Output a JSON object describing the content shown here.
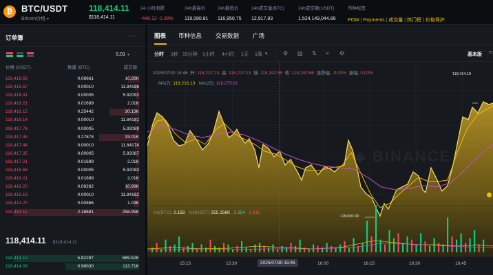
{
  "ticker": {
    "coin_symbol": "₿",
    "pair": "BTC/USDT",
    "coin_name": "Bitcoin价格",
    "last_price": "118,414.11",
    "last_price_usd": "$118,414.11",
    "stats": [
      {
        "label": "24 小时涨跌",
        "value": "-446.12",
        "value2": "-0.38%"
      },
      {
        "label": "24h最高价",
        "value": "119,080.81"
      },
      {
        "label": "24h最低价",
        "value": "116,950.75"
      },
      {
        "label": "24h成交量(BTC)",
        "value": "12,917.83"
      },
      {
        "label": "24h成交额(USDT)",
        "value": "1,524,149,044.89"
      },
      {
        "label": "币种标签",
        "tags": [
          "POW",
          "Payments",
          "成交量",
          "热门榜",
          "价格保护"
        ]
      }
    ]
  },
  "orderbook": {
    "title": "订单簿",
    "menu": "···",
    "step": "0.01",
    "headers": {
      "price": "价格 (USDT)",
      "amount": "数量 (BTC)",
      "total": "成交额"
    },
    "asks": [
      {
        "price": "118,418.58",
        "amount": "0.08661",
        "total": "10.26K",
        "depth": 0.08
      },
      {
        "price": "118,418.57",
        "amount": "0.00010",
        "total": "11.84186",
        "depth": 0.03
      },
      {
        "price": "118,418.41",
        "amount": "0.00005",
        "total": "5.92092",
        "depth": 0.02
      },
      {
        "price": "118,418.21",
        "amount": "0.01699",
        "total": "2.01K",
        "depth": 0.02
      },
      {
        "price": "118,418.15",
        "amount": "0.25442",
        "total": "30.13K",
        "depth": 0.22
      },
      {
        "price": "118,418.14",
        "amount": "0.00010",
        "total": "11.84181",
        "depth": 0.03
      },
      {
        "price": "118,417.76",
        "amount": "0.00005",
        "total": "5.92089",
        "depth": 0.02
      },
      {
        "price": "118,417.45",
        "amount": "0.27878",
        "total": "33.01K",
        "depth": 0.3
      },
      {
        "price": "118,417.44",
        "amount": "0.00010",
        "total": "11.84174",
        "depth": 0.03
      },
      {
        "price": "118,417.35",
        "amount": "0.00005",
        "total": "5.92087",
        "depth": 0.02
      },
      {
        "price": "118,417.21",
        "amount": "0.01699",
        "total": "2.01K",
        "depth": 0.02
      },
      {
        "price": "118,416.68",
        "amount": "0.00005",
        "total": "5.92083",
        "depth": 0.02
      },
      {
        "price": "118,416.21",
        "amount": "0.01699",
        "total": "2.01K",
        "depth": 0.02
      },
      {
        "price": "118,416.20",
        "amount": "0.09282",
        "total": "10.99K",
        "depth": 0.1
      },
      {
        "price": "118,416.19",
        "amount": "0.00010",
        "total": "11.84162",
        "depth": 0.03
      },
      {
        "price": "118,414.27",
        "amount": "0.00866",
        "total": "1.03K",
        "depth": 0.04
      },
      {
        "price": "118,414.11",
        "amount": "2.18681",
        "total": "258.95K",
        "depth": 0.94
      }
    ],
    "mid_price": "118,414.11",
    "mid_usd": "$118,414.11",
    "bids": [
      {
        "price": "118,414.10",
        "amount": "5.82297",
        "total": "689.52K",
        "depth": 0.94
      },
      {
        "price": "118,414.09",
        "amount": "0.96030",
        "total": "113.71K",
        "depth": 0.55
      }
    ]
  },
  "panel": {
    "tabs": [
      "图表",
      "币种信息",
      "交易数据",
      "广场"
    ],
    "timeframes": [
      "分时",
      "1秒",
      "15分钟",
      "1小时",
      "4小时",
      "1天",
      "1周"
    ],
    "timeframe_caret": "▾",
    "active_timeframe": "分时",
    "view_basic": "基本版",
    "view_more": "Tr",
    "ohlc": {
      "date": "2025/07/30 15:46",
      "open_label": "开:",
      "open": "118,227.13",
      "high_label": "高:",
      "high": "118,227.13",
      "low_label": "低:",
      "low": "118,192.55",
      "close_label": "收:",
      "close": "118,192.56",
      "change_label": "涨跌幅:",
      "change": "-0.03%",
      "amp_label": "振幅:",
      "amp": "0.02%"
    },
    "ma": {
      "ma7_label": "MA(7):",
      "ma7": "118,216.13",
      "ma25_label": "MA(25):",
      "ma25": "118,275.91"
    },
    "volume": {
      "vol_label": "Vol(BTC):",
      "vol": "2.158",
      "vol_usdt_label": "Vol(USDT)",
      "vol_usdt": "255.156K",
      "v1": "2.354",
      "v2": "3.315"
    },
    "price_labels": {
      "high": "118,414.10",
      "low": "118,000.00"
    },
    "x_labels": [
      "15:15",
      "15:30",
      "16:00",
      "16:15",
      "16:30",
      "16:45"
    ],
    "x_cursor": "2025/07/30 15:46",
    "colors": {
      "up": "#0ecb81",
      "down": "#f6465d",
      "accent": "#f0b90b",
      "ma25": "#c84fbf"
    }
  }
}
